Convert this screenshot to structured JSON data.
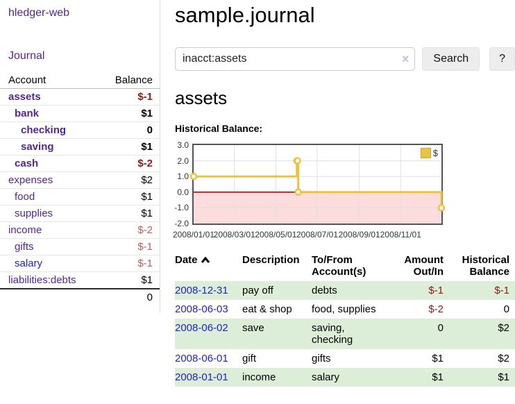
{
  "colors": {
    "link_visited_purple": "#54268e",
    "link_blue": "#2222cc",
    "negative_strong": "#8b1a1a",
    "negative_muted": "#b06060",
    "row_shade_green": "#dcedd8",
    "series_gold": "#edc240"
  },
  "sidebar": {
    "app_title": "hledger-web",
    "nav": {
      "journal": "Journal"
    },
    "accounts_table": {
      "account_header": "Account",
      "balance_header": "Balance",
      "rows": [
        {
          "label": "assets",
          "depth": 1,
          "bold": true,
          "balance": "$-1",
          "negative": "strong"
        },
        {
          "label": "bank",
          "depth": 2,
          "bold": true,
          "balance": "$1"
        },
        {
          "label": "checking",
          "depth": 3,
          "bold": true,
          "balance": "0"
        },
        {
          "label": "saving",
          "depth": 3,
          "bold": true,
          "balance": "$1"
        },
        {
          "label": "cash",
          "depth": 2,
          "bold": true,
          "balance": "$-2",
          "negative": "strong"
        },
        {
          "label": "expenses",
          "depth": 1,
          "bold": false,
          "balance": "$2"
        },
        {
          "label": "food",
          "depth": 2,
          "bold": false,
          "balance": "$1"
        },
        {
          "label": "supplies",
          "depth": 2,
          "bold": false,
          "balance": "$1"
        },
        {
          "label": "income",
          "depth": 1,
          "bold": false,
          "balance": "$-2",
          "negative": "muted"
        },
        {
          "label": "gifts",
          "depth": 2,
          "bold": false,
          "balance": "$-1",
          "negative": "muted"
        },
        {
          "label": "salary",
          "depth": 2,
          "bold": false,
          "balance": "$-1",
          "negative": "muted",
          "unvisited": true
        },
        {
          "label": "liabilities:debts",
          "depth": 1,
          "bold": false,
          "balance": "$1"
        }
      ],
      "total_balance": "0"
    }
  },
  "header": {
    "title": "sample.journal"
  },
  "search": {
    "query": "inacct:assets",
    "clear_icon": "×",
    "search_button_label": "Search",
    "help_button_label": "?"
  },
  "account_page": {
    "heading": "assets",
    "section_label": "Historical Balance:"
  },
  "chart_data": {
    "type": "line",
    "style": "step",
    "title": "Historical Balance",
    "series": [
      {
        "name": "$",
        "color": "#edc240",
        "points": [
          [
            "2008-01-01",
            1
          ],
          [
            "2008-06-01",
            2
          ],
          [
            "2008-06-02",
            2
          ],
          [
            "2008-06-03",
            0
          ],
          [
            "2008-12-31",
            -1
          ]
        ]
      }
    ],
    "xrange": [
      "2008-01-01",
      "2008-12-31"
    ],
    "ylim": [
      -2,
      3
    ],
    "yticks": [
      3,
      2,
      1,
      0,
      -1,
      -2
    ],
    "xticks": [
      "2008/01/01",
      "2008/03/01",
      "2008/05/01",
      "2008/07/01",
      "2008/09/01",
      "2008/11/01"
    ],
    "legend": {
      "label": "$",
      "position": "top-right"
    },
    "grid": true,
    "negative_region_fill": "#fcdcdc",
    "zero_line_color": "#8b0000"
  },
  "register_table": {
    "headers": {
      "date": "Date",
      "description": "Description",
      "accounts": "To/From Account(s)",
      "amount": "Amount Out/In",
      "balance": "Historical Balance"
    },
    "sort": {
      "column": "date",
      "direction": "ascending",
      "icon": "chevron-up"
    },
    "rows": [
      {
        "date": "2008-12-31",
        "description": "pay off",
        "accounts": "debts",
        "amount": "$-1",
        "amount_negative": true,
        "balance": "$-1",
        "balance_negative": true,
        "shaded": true
      },
      {
        "date": "2008-06-03",
        "description": "eat & shop",
        "accounts": "food, supplies",
        "amount": "$-2",
        "amount_negative": true,
        "balance": "0",
        "balance_negative": false,
        "shaded": false
      },
      {
        "date": "2008-06-02",
        "description": "save",
        "accounts": "saving, checking",
        "amount": "0",
        "amount_negative": false,
        "balance": "$2",
        "balance_negative": false,
        "shaded": true
      },
      {
        "date": "2008-06-01",
        "description": "gift",
        "accounts": "gifts",
        "amount": "$1",
        "amount_negative": false,
        "balance": "$2",
        "balance_negative": false,
        "shaded": false
      },
      {
        "date": "2008-01-01",
        "description": "income",
        "accounts": "salary",
        "amount": "$1",
        "amount_negative": false,
        "balance": "$1",
        "balance_negative": false,
        "shaded": true
      }
    ]
  }
}
